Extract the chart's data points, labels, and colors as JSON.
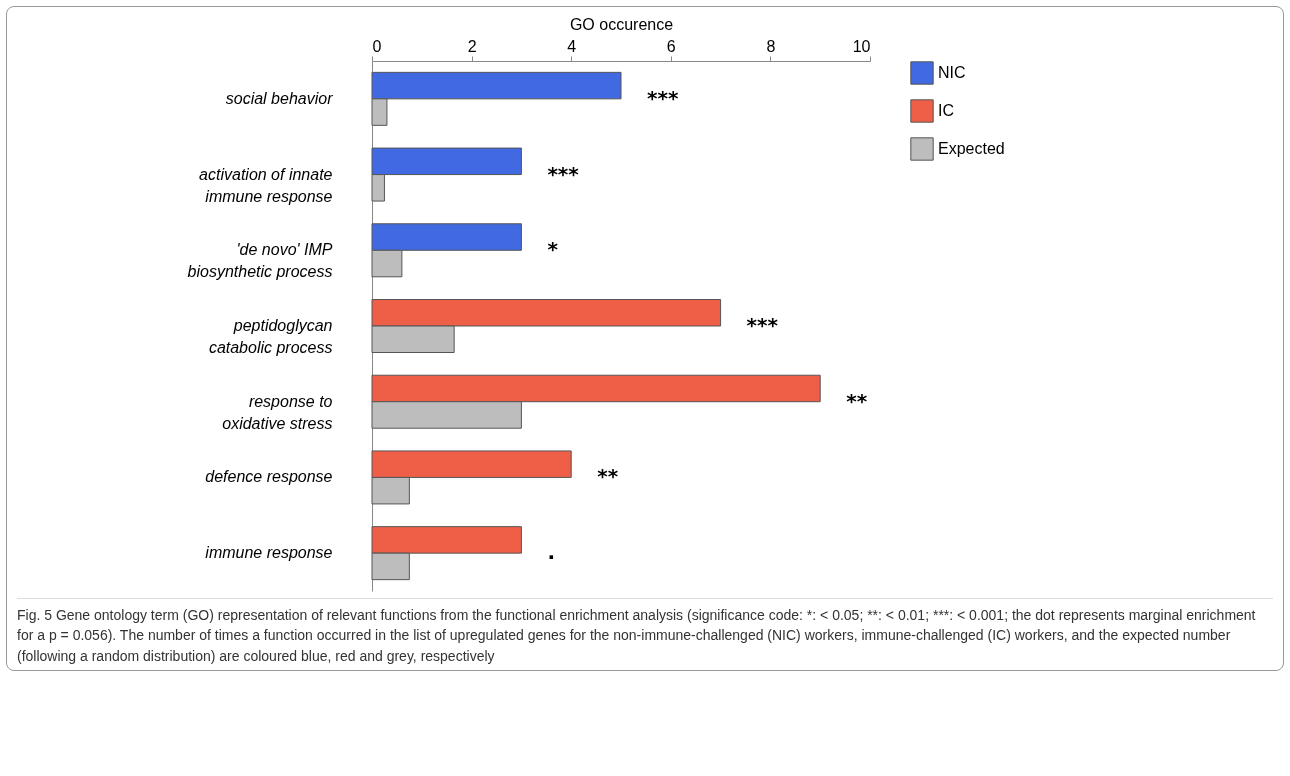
{
  "chart_data": {
    "type": "bar",
    "orientation": "horizontal",
    "xlabel": "GO occurence",
    "categories": [
      "social behavior",
      "activation of innate immune response",
      "'de novo' IMP biosynthetic process",
      "peptidoglycan catabolic process",
      "response to oxidative stress",
      "defence response",
      "immune response"
    ],
    "series": [
      {
        "name": "NIC",
        "color": "#4169e1",
        "values": [
          5,
          3,
          3,
          null,
          null,
          null,
          null
        ]
      },
      {
        "name": "IC",
        "color": "#ef5f47",
        "values": [
          null,
          null,
          null,
          7,
          9,
          4,
          3
        ]
      },
      {
        "name": "Expected",
        "color": "#bdbdbd",
        "values": [
          0.3,
          0.25,
          0.6,
          1.65,
          3.0,
          0.75,
          0.75
        ]
      }
    ],
    "xlim": [
      0,
      10
    ],
    "xticks": [
      0,
      2,
      4,
      6,
      8,
      10
    ],
    "grid": false,
    "legend": "top right",
    "annotations": [
      "***",
      "***",
      "*",
      "***",
      "**",
      "**",
      ".",
      "Fig. 5 Gene ontology term (GO) representation of relevant functions from the functional enrichment analysis (significance code: *: < 0.05; **: < 0.01; ***: < 0.001; the dot represents marginal enrichment for a p = 0.056). The number of times a function occurred in the list of upregulated genes for the non-immune-challenged (NIC) workers, immune-challenged (IC) workers, and the expected number (following a random distribution) are coloured blue, red and grey, respectively"
    ]
  }
}
